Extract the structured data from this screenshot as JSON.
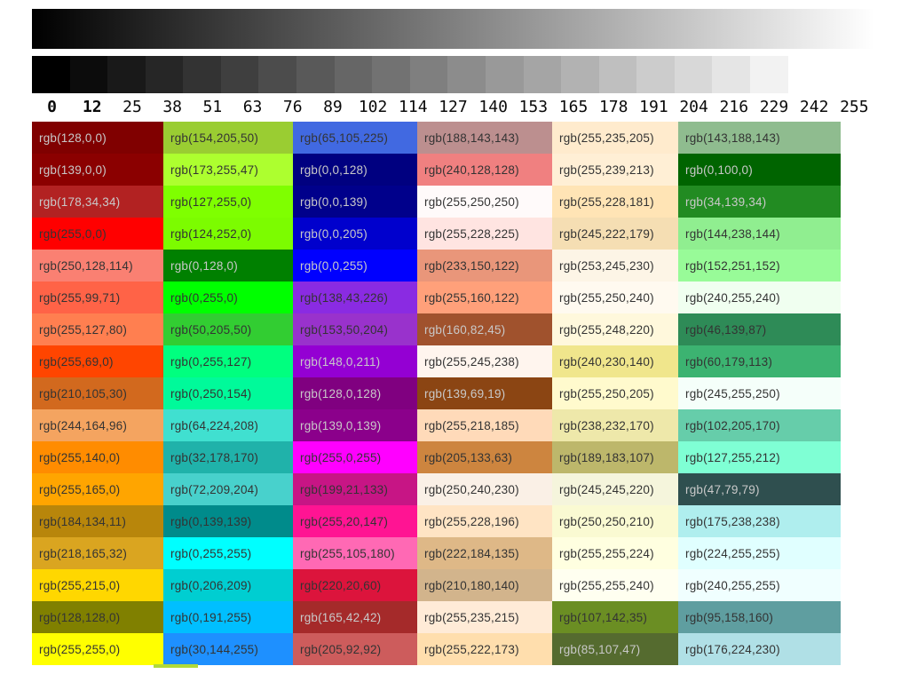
{
  "chart_data": {
    "type": "table",
    "title": "",
    "description": "Grayscale ramp with tick values and a grid of named RGB color swatches",
    "grayscale_ramp": {
      "gradient_start": "#000000",
      "gradient_end": "#ffffff",
      "step_values": [
        0,
        12,
        25,
        38,
        51,
        63,
        76,
        89,
        102,
        114,
        127,
        140,
        153,
        165,
        178,
        191,
        204,
        216,
        229,
        242,
        255
      ]
    },
    "scale_tick_labels": [
      "0",
      "12",
      "25",
      "38",
      "51",
      "63",
      "76",
      "89",
      "102",
      "114",
      "127",
      "140",
      "153",
      "165",
      "178",
      "191",
      "204",
      "216",
      "229",
      "242",
      "255"
    ],
    "palette_columns": [
      {
        "cells": [
          "rgb(128,0,0)",
          "rgb(139,0,0)",
          "rgb(178,34,34)",
          "rgb(255,0,0)",
          "rgb(250,128,114)",
          "rgb(255,99,71)",
          "rgb(255,127,80)",
          "rgb(255,69,0)",
          "rgb(210,105,30)",
          "rgb(244,164,96)",
          "rgb(255,140,0)",
          "rgb(255,165,0)",
          "rgb(184,134,11)",
          "rgb(218,165,32)",
          "rgb(255,215,0)",
          "rgb(128,128,0)",
          "rgb(255,255,0)"
        ]
      },
      {
        "cells": [
          "rgb(154,205,50)",
          "rgb(173,255,47)",
          "rgb(127,255,0)",
          "rgb(124,252,0)",
          "rgb(0,128,0)",
          "rgb(0,255,0)",
          "rgb(50,205,50)",
          "rgb(0,255,127)",
          "rgb(0,250,154)",
          "rgb(64,224,208)",
          "rgb(32,178,170)",
          "rgb(72,209,204)",
          "rgb(0,139,139)",
          "rgb(0,255,255)",
          "rgb(0,206,209)",
          "rgb(0,191,255)",
          "rgb(30,144,255)"
        ]
      },
      {
        "cells": [
          "rgb(65,105,225)",
          "rgb(0,0,128)",
          "rgb(0,0,139)",
          "rgb(0,0,205)",
          "rgb(0,0,255)",
          "rgb(138,43,226)",
          "rgb(153,50,204)",
          "rgb(148,0,211)",
          "rgb(128,0,128)",
          "rgb(139,0,139)",
          "rgb(255,0,255)",
          "rgb(199,21,133)",
          "rgb(255,20,147)",
          "rgb(255,105,180)",
          "rgb(220,20,60)",
          "rgb(165,42,42)",
          "rgb(205,92,92)"
        ]
      },
      {
        "cells": [
          "rgb(188,143,143)",
          "rgb(240,128,128)",
          "rgb(255,250,250)",
          "rgb(255,228,225)",
          "rgb(233,150,122)",
          "rgb(255,160,122)",
          "rgb(160,82,45)",
          "rgb(255,245,238)",
          "rgb(139,69,19)",
          "rgb(255,218,185)",
          "rgb(205,133,63)",
          "rgb(250,240,230)",
          "rgb(255,228,196)",
          "rgb(222,184,135)",
          "rgb(210,180,140)",
          "rgb(255,235,215)",
          "rgb(255,222,173)"
        ]
      },
      {
        "cells": [
          "rgb(255,235,205)",
          "rgb(255,239,213)",
          "rgb(255,228,181)",
          "rgb(245,222,179)",
          "rgb(253,245,230)",
          "rgb(255,250,240)",
          "rgb(255,248,220)",
          "rgb(240,230,140)",
          "rgb(255,250,205)",
          "rgb(238,232,170)",
          "rgb(189,183,107)",
          "rgb(245,245,220)",
          "rgb(250,250,210)",
          "rgb(255,255,224)",
          "rgb(255,255,240)",
          "rgb(107,142,35)",
          "rgb(85,107,47)"
        ]
      },
      {
        "cells": [
          "rgb(143,188,143)",
          "rgb(0,100,0)",
          "rgb(34,139,34)",
          "rgb(144,238,144)",
          "rgb(152,251,152)",
          "rgb(240,255,240)",
          "rgb(46,139,87)",
          "rgb(60,179,113)",
          "rgb(245,255,250)",
          "rgb(102,205,170)",
          "rgb(127,255,212)",
          "rgb(47,79,79)",
          "rgb(175,238,238)",
          "rgb(224,255,255)",
          "rgb(240,255,255)",
          "rgb(95,158,160)",
          "rgb(176,224,230)"
        ]
      }
    ]
  },
  "style_colors": {
    "page_background": "#ffffff",
    "dark_text": "#333333",
    "light_text": "#c9c9c9",
    "tick_text": "#0a0a0a"
  },
  "partial_row": {
    "color": "#b2da38"
  }
}
